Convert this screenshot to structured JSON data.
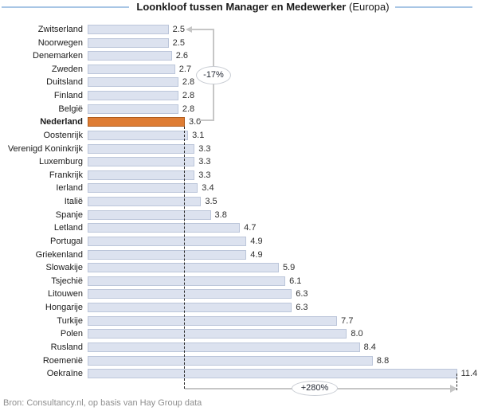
{
  "title": {
    "main": "Loonkloof tussen Manager en Medewerker",
    "suffix": " (Europa)"
  },
  "annotations": {
    "decrease_label": "-17%",
    "increase_label": "+280%"
  },
  "source": "Bron: Consultancy.nl, op basis van Hay Group data",
  "colors": {
    "bar_fill": "#DCE2EF",
    "bar_border": "#BCC6DA",
    "highlight_fill": "#DE7C33",
    "highlight_border": "#B05C1D",
    "bracket_line": "#C6C6C6",
    "title_line": "#A8C6E5",
    "dashed_line": "#2B2B2B",
    "source_text": "#8F8F8F"
  },
  "chart_data": {
    "type": "bar",
    "orientation": "horizontal",
    "title": "Loonkloof tussen Manager en Medewerker (Europa)",
    "categories": [
      "Zwitserland",
      "Noorwegen",
      "Denemarken",
      "Zweden",
      "Duitsland",
      "Finland",
      "België",
      "Nederland",
      "Oostenrijk",
      "Verenigd Koninkrijk",
      "Luxemburg",
      "Frankrijk",
      "Ierland",
      "Italië",
      "Spanje",
      "Letland",
      "Portugal",
      "Griekenland",
      "Slowakije",
      "Tsjechië",
      "Litouwen",
      "Hongarije",
      "Turkije",
      "Polen",
      "Rusland",
      "Roemenië",
      "Oekraïne"
    ],
    "values": [
      2.5,
      2.5,
      2.6,
      2.7,
      2.8,
      2.8,
      2.8,
      3.0,
      3.1,
      3.3,
      3.3,
      3.3,
      3.4,
      3.5,
      3.8,
      4.7,
      4.9,
      4.9,
      5.9,
      6.1,
      6.3,
      6.3,
      7.7,
      8.0,
      8.4,
      8.8,
      11.4
    ],
    "highlight_category": "Nederland",
    "value_label_decimals": 1,
    "baseline_value": 3.0,
    "max_value": 11.4,
    "xlim": [
      0,
      12
    ],
    "grid": false,
    "legend": false,
    "annotation_labels": [
      "-17%",
      "+280%"
    ]
  }
}
